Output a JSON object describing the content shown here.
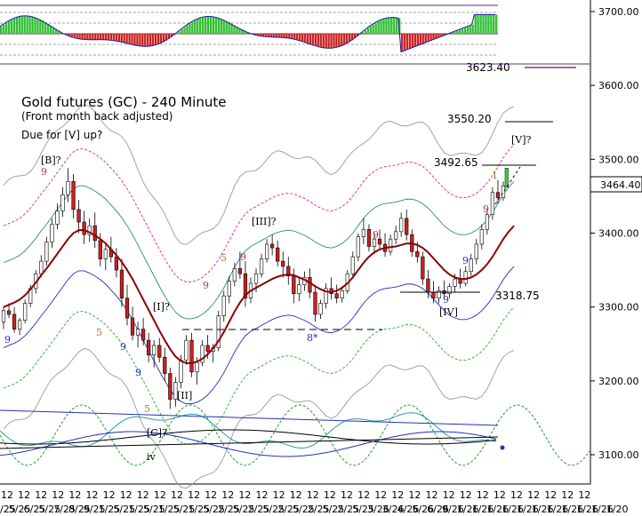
{
  "chart_data": {
    "type": "candlestick",
    "title": "Gold futures (GC) - 240 Minute",
    "subtitle": "(Front month back adjusted)",
    "note": "Due for [V] up?",
    "ylim": [
      3060,
      3720
    ],
    "y_ticks": [
      "3100.00",
      "3200.00",
      "3300.00",
      "3400.00",
      "3500.00",
      "3600.00",
      "3700.00"
    ],
    "x_tick_top": [
      "12",
      "12",
      "12",
      "12",
      "12",
      "12",
      "12",
      "12",
      "12",
      "12",
      "12",
      "12",
      "12",
      "12",
      "12",
      "12",
      "12",
      "12",
      "12",
      "12",
      "12",
      "12",
      "12",
      "12",
      "12",
      "12",
      "12",
      "12",
      "12",
      "12",
      "12",
      "12",
      "12",
      "12",
      "12"
    ],
    "x_tick_bottom": [
      "5/25",
      "5/25",
      "6/25",
      "5/25",
      "7/25",
      "8/25",
      "9/25",
      "1/25",
      "5/25",
      "1/25",
      "5/25",
      "1/25",
      "5/25",
      "1/25",
      "5/25",
      "2/25",
      "5/25",
      "2/25",
      "5/25",
      "2/25",
      "5/25",
      "2/25",
      "5/25",
      "2/25",
      "5/25",
      "3/26",
      "3/26",
      "4/26",
      "5/26",
      "6/26",
      "9/26",
      "1/26",
      "1/26",
      "1/26",
      "1/26",
      "1/26",
      "1/26",
      "1/26",
      "1/26",
      "1/26",
      "1/26",
      "1/20"
    ],
    "last_price": "3464.40",
    "levels": [
      {
        "label": "3623.40",
        "value": 3623.4
      },
      {
        "label": "3550.20",
        "value": 3550.2
      },
      {
        "label": "3492.65",
        "value": 3492.65
      },
      {
        "label": "3318.75",
        "value": 3318.75
      }
    ],
    "wave_labels": [
      "[B]?",
      "[III]?",
      "[I]?",
      "[II]",
      "[C]?",
      "iv",
      "[IV]",
      "[V]?",
      "8*"
    ],
    "count_labels": [
      "9",
      "9",
      "5",
      "9",
      "5",
      "9",
      "5",
      "9",
      "9",
      "9",
      "9",
      "9",
      "9",
      "1"
    ],
    "candles": [
      [
        3280,
        3300,
        3270,
        3295
      ],
      [
        3295,
        3305,
        3285,
        3290
      ],
      [
        3290,
        3300,
        3265,
        3270
      ],
      [
        3270,
        3285,
        3262,
        3282
      ],
      [
        3282,
        3310,
        3278,
        3305
      ],
      [
        3305,
        3330,
        3300,
        3325
      ],
      [
        3325,
        3350,
        3318,
        3345
      ],
      [
        3345,
        3370,
        3340,
        3362
      ],
      [
        3362,
        3395,
        3356,
        3388
      ],
      [
        3388,
        3420,
        3380,
        3412
      ],
      [
        3412,
        3440,
        3405,
        3430
      ],
      [
        3430,
        3462,
        3422,
        3452
      ],
      [
        3452,
        3488,
        3442,
        3470
      ],
      [
        3470,
        3480,
        3420,
        3432
      ],
      [
        3432,
        3445,
        3400,
        3415
      ],
      [
        3415,
        3430,
        3385,
        3398
      ],
      [
        3398,
        3420,
        3388,
        3410
      ],
      [
        3410,
        3428,
        3380,
        3390
      ],
      [
        3390,
        3400,
        3355,
        3365
      ],
      [
        3365,
        3385,
        3350,
        3378
      ],
      [
        3378,
        3395,
        3360,
        3368
      ],
      [
        3368,
        3380,
        3340,
        3350
      ],
      [
        3350,
        3365,
        3300,
        3312
      ],
      [
        3312,
        3330,
        3275,
        3285
      ],
      [
        3285,
        3300,
        3255,
        3262
      ],
      [
        3262,
        3280,
        3245,
        3270
      ],
      [
        3270,
        3285,
        3248,
        3255
      ],
      [
        3255,
        3265,
        3225,
        3235
      ],
      [
        3235,
        3255,
        3218,
        3248
      ],
      [
        3248,
        3258,
        3225,
        3232
      ],
      [
        3232,
        3245,
        3200,
        3210
      ],
      [
        3210,
        3218,
        3162,
        3175
      ],
      [
        3175,
        3205,
        3165,
        3198
      ],
      [
        3198,
        3235,
        3190,
        3228
      ],
      [
        3228,
        3262,
        3222,
        3255
      ],
      [
        3255,
        3265,
        3205,
        3212
      ],
      [
        3212,
        3232,
        3195,
        3225
      ],
      [
        3225,
        3255,
        3220,
        3248
      ],
      [
        3248,
        3262,
        3230,
        3240
      ],
      [
        3240,
        3250,
        3225,
        3245
      ],
      [
        3245,
        3295,
        3240,
        3288
      ],
      [
        3288,
        3322,
        3280,
        3315
      ],
      [
        3315,
        3342,
        3305,
        3335
      ],
      [
        3335,
        3360,
        3328,
        3352
      ],
      [
        3352,
        3375,
        3338,
        3345
      ],
      [
        3345,
        3362,
        3300,
        3312
      ],
      [
        3312,
        3340,
        3305,
        3332
      ],
      [
        3332,
        3352,
        3320,
        3345
      ],
      [
        3345,
        3372,
        3340,
        3365
      ],
      [
        3365,
        3392,
        3360,
        3385
      ],
      [
        3385,
        3398,
        3370,
        3380
      ],
      [
        3380,
        3390,
        3355,
        3362
      ],
      [
        3362,
        3375,
        3340,
        3355
      ],
      [
        3355,
        3368,
        3330,
        3342
      ],
      [
        3342,
        3352,
        3305,
        3318
      ],
      [
        3318,
        3340,
        3308,
        3330
      ],
      [
        3330,
        3348,
        3322,
        3340
      ],
      [
        3340,
        3352,
        3312,
        3320
      ],
      [
        3320,
        3330,
        3280,
        3290
      ],
      [
        3290,
        3310,
        3284,
        3305
      ],
      [
        3305,
        3332,
        3298,
        3325
      ],
      [
        3325,
        3340,
        3310,
        3318
      ],
      [
        3318,
        3330,
        3305,
        3312
      ],
      [
        3312,
        3328,
        3306,
        3322
      ],
      [
        3322,
        3350,
        3318,
        3345
      ],
      [
        3345,
        3375,
        3340,
        3368
      ],
      [
        3368,
        3400,
        3362,
        3395
      ],
      [
        3395,
        3420,
        3385,
        3405
      ],
      [
        3405,
        3412,
        3375,
        3382
      ],
      [
        3382,
        3400,
        3372,
        3392
      ],
      [
        3392,
        3405,
        3378,
        3385
      ],
      [
        3385,
        3400,
        3368,
        3375
      ],
      [
        3375,
        3398,
        3370,
        3392
      ],
      [
        3392,
        3410,
        3385,
        3402
      ],
      [
        3402,
        3428,
        3395,
        3420
      ],
      [
        3420,
        3432,
        3390,
        3398
      ],
      [
        3398,
        3405,
        3368,
        3375
      ],
      [
        3375,
        3388,
        3360,
        3368
      ],
      [
        3368,
        3375,
        3330,
        3338
      ],
      [
        3338,
        3350,
        3312,
        3320
      ],
      [
        3320,
        3335,
        3305,
        3312
      ],
      [
        3312,
        3328,
        3305,
        3322
      ],
      [
        3322,
        3336,
        3310,
        3318
      ],
      [
        3318,
        3332,
        3312,
        3328
      ],
      [
        3328,
        3345,
        3320,
        3338
      ],
      [
        3338,
        3352,
        3325,
        3332
      ],
      [
        3332,
        3355,
        3328,
        3348
      ],
      [
        3348,
        3372,
        3342,
        3365
      ],
      [
        3365,
        3392,
        3358,
        3385
      ],
      [
        3385,
        3412,
        3378,
        3405
      ],
      [
        3405,
        3432,
        3398,
        3425
      ],
      [
        3425,
        3462,
        3418,
        3455
      ],
      [
        3455,
        3472,
        3440,
        3448
      ],
      [
        3448,
        3470,
        3444,
        3464
      ]
    ],
    "ma_red": [
      3300,
      3303,
      3306,
      3310,
      3316,
      3324,
      3333,
      3343,
      3352,
      3362,
      3372,
      3382,
      3392,
      3400,
      3404,
      3404,
      3401,
      3397,
      3392,
      3386,
      3378,
      3370,
      3361,
      3350,
      3338,
      3324,
      3310,
      3296,
      3282,
      3268,
      3255,
      3243,
      3233,
      3227,
      3224,
      3224,
      3226,
      3230,
      3236,
      3244,
      3254,
      3266,
      3280,
      3294,
      3306,
      3316,
      3322,
      3326,
      3330,
      3334,
      3338,
      3341,
      3343,
      3344,
      3343,
      3340,
      3337,
      3333,
      3328,
      3324,
      3321,
      3320,
      3322,
      3326,
      3332,
      3340,
      3350,
      3360,
      3368,
      3374,
      3378,
      3380,
      3381,
      3382,
      3384,
      3386,
      3386,
      3384,
      3380,
      3374,
      3366,
      3358,
      3350,
      3344,
      3340,
      3338,
      3338,
      3340,
      3344,
      3350,
      3358,
      3368,
      3380,
      3392,
      3402,
      3410
    ]
  }
}
